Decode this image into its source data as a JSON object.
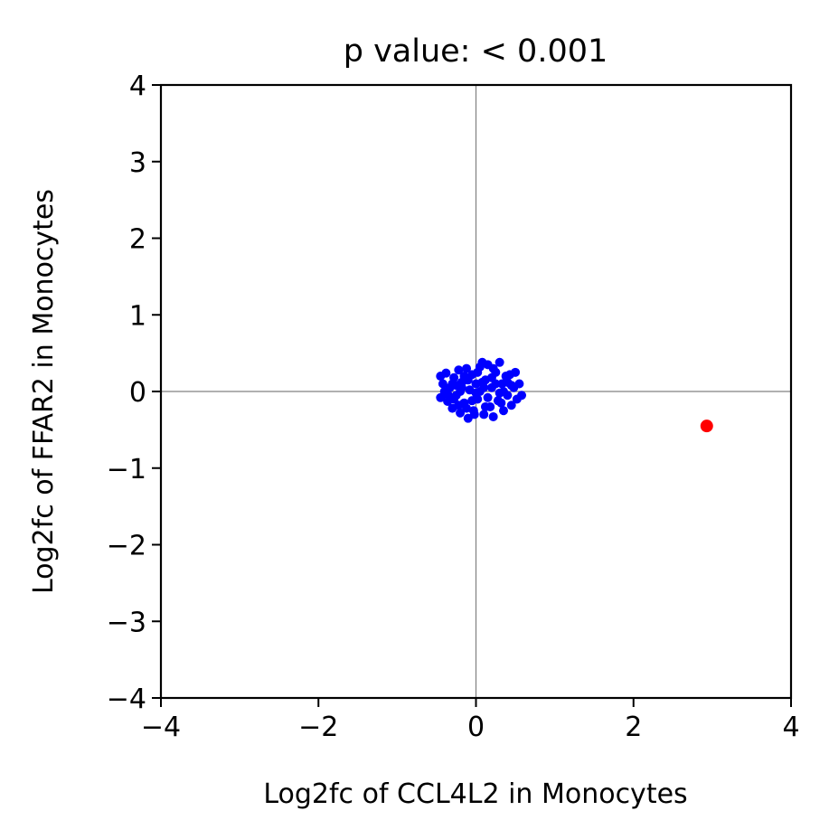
{
  "chart_data": {
    "type": "scatter",
    "title": "p value: < 0.001",
    "xlabel": "Log2fc of CCL4L2 in Monocytes",
    "ylabel": "Log2fc of FFAR2 in Monocytes",
    "xlim": [
      -4,
      4
    ],
    "ylim": [
      -4,
      4
    ],
    "xticks": [
      -4,
      -2,
      0,
      2,
      4
    ],
    "yticks": [
      -4,
      -3,
      -2,
      -1,
      0,
      1,
      2,
      3,
      4
    ],
    "xtick_labels": [
      "−4",
      "−2",
      "0",
      "2",
      "4"
    ],
    "ytick_labels": [
      "−4",
      "−3",
      "−2",
      "−1",
      "0",
      "1",
      "2",
      "3",
      "4"
    ],
    "reference_lines": {
      "x": 0,
      "y": 0,
      "color": "#808080"
    },
    "grid": false,
    "series": [
      {
        "color": "#0000ff",
        "points": [
          [
            -0.45,
            0.2
          ],
          [
            -0.42,
            0.1
          ],
          [
            -0.45,
            -0.08
          ],
          [
            -0.38,
            0.24
          ],
          [
            -0.36,
            -0.13
          ],
          [
            -0.33,
            0.05
          ],
          [
            -0.3,
            -0.22
          ],
          [
            -0.28,
            0.18
          ],
          [
            -0.25,
            -0.05
          ],
          [
            -0.22,
            0.28
          ],
          [
            -0.2,
            -0.28
          ],
          [
            -0.18,
            0.12
          ],
          [
            -0.15,
            -0.15
          ],
          [
            -0.12,
            0.3
          ],
          [
            -0.1,
            -0.35
          ],
          [
            -0.08,
            0.02
          ],
          [
            -0.05,
            0.22
          ],
          [
            -0.03,
            -0.25
          ],
          [
            0.0,
            0.1
          ],
          [
            0.02,
            -0.1
          ],
          [
            0.05,
            0.32
          ],
          [
            0.08,
            0.38
          ],
          [
            0.1,
            -0.3
          ],
          [
            0.12,
            0.15
          ],
          [
            0.15,
            0.35
          ],
          [
            0.18,
            -0.2
          ],
          [
            0.2,
            0.05
          ],
          [
            0.22,
            -0.33
          ],
          [
            0.25,
            0.25
          ],
          [
            0.28,
            -0.12
          ],
          [
            0.3,
            0.38
          ],
          [
            0.33,
            0.1
          ],
          [
            0.35,
            -0.25
          ],
          [
            0.38,
            0.2
          ],
          [
            0.4,
            -0.05
          ],
          [
            0.43,
            0.22
          ],
          [
            0.45,
            -0.18
          ],
          [
            0.48,
            0.05
          ],
          [
            0.5,
            0.25
          ],
          [
            0.52,
            -0.1
          ],
          [
            0.55,
            0.1
          ],
          [
            0.58,
            -0.05
          ],
          [
            -0.4,
            0.0
          ],
          [
            -0.3,
            0.1
          ],
          [
            -0.2,
            0.0
          ],
          [
            -0.1,
            0.15
          ],
          [
            0.0,
            -0.02
          ],
          [
            0.1,
            0.05
          ],
          [
            0.2,
            0.18
          ],
          [
            0.3,
            -0.02
          ],
          [
            -0.35,
            -0.05
          ],
          [
            -0.25,
            0.08
          ],
          [
            -0.15,
            0.2
          ],
          [
            -0.05,
            -0.12
          ],
          [
            0.05,
            0.0
          ],
          [
            0.15,
            -0.08
          ],
          [
            0.25,
            0.1
          ],
          [
            0.35,
            0.0
          ],
          [
            0.45,
            0.08
          ],
          [
            -0.12,
            -0.22
          ],
          [
            0.02,
            0.25
          ],
          [
            0.12,
            -0.2
          ],
          [
            -0.22,
            -0.18
          ],
          [
            0.22,
            0.3
          ],
          [
            -0.02,
            -0.3
          ],
          [
            0.4,
            0.12
          ],
          [
            -0.28,
            -0.1
          ],
          [
            0.32,
            -0.15
          ],
          [
            -0.18,
            0.05
          ],
          [
            0.08,
            0.12
          ]
        ]
      },
      {
        "color": "#ff0000",
        "points": [
          [
            2.93,
            -0.45
          ]
        ]
      }
    ]
  }
}
